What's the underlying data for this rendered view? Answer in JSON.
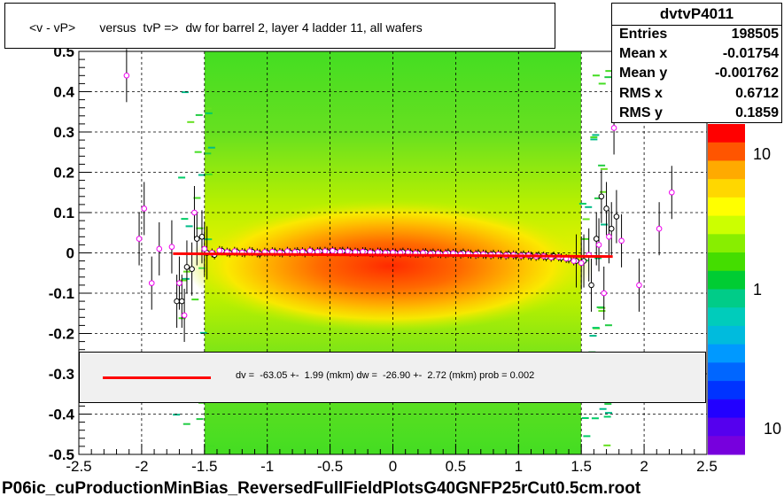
{
  "chart_data": {
    "type": "heatmap",
    "title": "<v - vP>       versus  tvP =>  dw for barrel 2, layer 4 ladder 11, all wafers",
    "xlim": [
      -2.5,
      2.5
    ],
    "ylim": [
      -0.5,
      0.5
    ],
    "x_ticks": [
      "-2.5",
      "-2",
      "-1.5",
      "-1",
      "-0.5",
      "0",
      "0.5",
      "1",
      "1.5",
      "2",
      "2.5"
    ],
    "y_ticks": [
      "-0.5",
      "-0.4",
      "-0.3",
      "-0.2",
      "-0.1",
      "0",
      "0.1",
      "0.2",
      "0.3",
      "0.4",
      "0.5"
    ],
    "grid": true,
    "colorbar": {
      "scale": "log",
      "labels": [
        "10",
        "1",
        "10"
      ],
      "colors": [
        "#ff0000",
        "#ff5500",
        "#ffaa00",
        "#ffd700",
        "#ffff00",
        "#ccff00",
        "#88ee00",
        "#44dd00",
        "#00cc33",
        "#00cc88",
        "#00ccbb",
        "#00bbdd",
        "#0099ff",
        "#0066ff",
        "#0033ff",
        "#2200ff",
        "#5500ee",
        "#7700dd"
      ]
    },
    "fit_line": {
      "x": [
        -1.75,
        1.75
      ],
      "y": [
        -0.002,
        -0.009
      ],
      "color": "#ff0000"
    },
    "profile_black": [
      {
        "x": -1.72,
        "y": -0.12
      },
      {
        "x": -1.68,
        "y": -0.12
      },
      {
        "x": -1.64,
        "y": -0.035
      },
      {
        "x": -1.6,
        "y": -0.04
      },
      {
        "x": -1.56,
        "y": 0.035
      },
      {
        "x": -1.52,
        "y": 0.04
      },
      {
        "x": -1.48,
        "y": 0.0
      },
      {
        "x": -1.42,
        "y": -0.005
      },
      {
        "x": -1.36,
        "y": 0.005
      },
      {
        "x": -1.3,
        "y": 0.0
      },
      {
        "x": -1.24,
        "y": 0.002
      },
      {
        "x": -1.18,
        "y": 0.0
      },
      {
        "x": -1.12,
        "y": 0.003
      },
      {
        "x": -1.06,
        "y": -0.002
      },
      {
        "x": -1.0,
        "y": 0.0
      },
      {
        "x": -0.94,
        "y": 0.002
      },
      {
        "x": -0.88,
        "y": 0.0
      },
      {
        "x": -0.82,
        "y": 0.001
      },
      {
        "x": -0.76,
        "y": 0.003
      },
      {
        "x": -0.7,
        "y": 0.0
      },
      {
        "x": -0.64,
        "y": 0.002
      },
      {
        "x": -0.58,
        "y": 0.004
      },
      {
        "x": -0.52,
        "y": 0.002
      },
      {
        "x": -0.46,
        "y": 0.003
      },
      {
        "x": -0.4,
        "y": 0.004
      },
      {
        "x": -0.34,
        "y": 0.002
      },
      {
        "x": -0.28,
        "y": 0.001
      },
      {
        "x": -0.22,
        "y": 0.003
      },
      {
        "x": -0.16,
        "y": 0.0
      },
      {
        "x": -0.1,
        "y": 0.002
      },
      {
        "x": -0.04,
        "y": 0.001
      },
      {
        "x": 0.02,
        "y": 0.0
      },
      {
        "x": 0.08,
        "y": 0.002
      },
      {
        "x": 0.14,
        "y": 0.0
      },
      {
        "x": 0.2,
        "y": -0.001
      },
      {
        "x": 0.26,
        "y": 0.001
      },
      {
        "x": 0.32,
        "y": 0.0
      },
      {
        "x": 0.38,
        "y": -0.002
      },
      {
        "x": 0.44,
        "y": 0.0
      },
      {
        "x": 0.5,
        "y": -0.002
      },
      {
        "x": 0.56,
        "y": 0.0
      },
      {
        "x": 0.62,
        "y": -0.003
      },
      {
        "x": 0.68,
        "y": -0.002
      },
      {
        "x": 0.74,
        "y": -0.004
      },
      {
        "x": 0.8,
        "y": -0.003
      },
      {
        "x": 0.86,
        "y": -0.005
      },
      {
        "x": 0.92,
        "y": -0.004
      },
      {
        "x": 0.98,
        "y": -0.006
      },
      {
        "x": 1.04,
        "y": -0.005
      },
      {
        "x": 1.1,
        "y": -0.008
      },
      {
        "x": 1.16,
        "y": -0.007
      },
      {
        "x": 1.22,
        "y": -0.01
      },
      {
        "x": 1.28,
        "y": -0.008
      },
      {
        "x": 1.34,
        "y": -0.012
      },
      {
        "x": 1.4,
        "y": -0.015
      },
      {
        "x": 1.46,
        "y": -0.02
      },
      {
        "x": 1.52,
        "y": -0.02
      },
      {
        "x": 1.58,
        "y": -0.08
      },
      {
        "x": 1.62,
        "y": 0.035
      },
      {
        "x": 1.66,
        "y": 0.14
      },
      {
        "x": 1.7,
        "y": 0.11
      },
      {
        "x": 1.74,
        "y": 0.06
      },
      {
        "x": 1.78,
        "y": 0.09
      }
    ],
    "profile_magenta": [
      {
        "x": -2.12,
        "y": 0.44
      },
      {
        "x": -2.02,
        "y": 0.035
      },
      {
        "x": -1.98,
        "y": 0.11
      },
      {
        "x": -1.92,
        "y": -0.075
      },
      {
        "x": -1.86,
        "y": 0.01
      },
      {
        "x": -1.76,
        "y": 0.015
      },
      {
        "x": -1.7,
        "y": -0.075
      },
      {
        "x": -1.66,
        "y": -0.155
      },
      {
        "x": -1.58,
        "y": 0.1
      },
      {
        "x": -1.5,
        "y": 0.01
      },
      {
        "x": -1.44,
        "y": 0.0
      },
      {
        "x": -1.38,
        "y": 0.006
      },
      {
        "x": -1.32,
        "y": 0.002
      },
      {
        "x": -1.26,
        "y": 0.004
      },
      {
        "x": -1.2,
        "y": 0.001
      },
      {
        "x": -1.14,
        "y": 0.004
      },
      {
        "x": -1.08,
        "y": 0.0
      },
      {
        "x": -1.02,
        "y": 0.002
      },
      {
        "x": -0.96,
        "y": 0.003
      },
      {
        "x": -0.9,
        "y": 0.001
      },
      {
        "x": -0.84,
        "y": 0.004
      },
      {
        "x": -0.78,
        "y": 0.002
      },
      {
        "x": -0.72,
        "y": 0.003
      },
      {
        "x": -0.66,
        "y": 0.005
      },
      {
        "x": -0.6,
        "y": 0.003
      },
      {
        "x": -0.54,
        "y": 0.004
      },
      {
        "x": -0.48,
        "y": 0.005
      },
      {
        "x": -0.42,
        "y": 0.003
      },
      {
        "x": -0.36,
        "y": 0.004
      },
      {
        "x": -0.3,
        "y": 0.002
      },
      {
        "x": -0.24,
        "y": 0.003
      },
      {
        "x": -0.18,
        "y": 0.001
      },
      {
        "x": -0.12,
        "y": 0.002
      },
      {
        "x": -0.06,
        "y": 0.0
      },
      {
        "x": 0.0,
        "y": 0.001
      },
      {
        "x": 0.06,
        "y": 0.0
      },
      {
        "x": 0.12,
        "y": 0.001
      },
      {
        "x": 0.18,
        "y": -0.001
      },
      {
        "x": 0.24,
        "y": 0.0
      },
      {
        "x": 0.3,
        "y": -0.002
      },
      {
        "x": 0.36,
        "y": -0.001
      },
      {
        "x": 0.42,
        "y": -0.002
      },
      {
        "x": 0.48,
        "y": -0.001
      },
      {
        "x": 0.54,
        "y": -0.003
      },
      {
        "x": 0.6,
        "y": -0.002
      },
      {
        "x": 0.66,
        "y": -0.004
      },
      {
        "x": 0.72,
        "y": -0.003
      },
      {
        "x": 0.78,
        "y": -0.005
      },
      {
        "x": 0.84,
        "y": -0.004
      },
      {
        "x": 0.9,
        "y": -0.006
      },
      {
        "x": 0.96,
        "y": -0.005
      },
      {
        "x": 1.02,
        "y": -0.007
      },
      {
        "x": 1.08,
        "y": -0.006
      },
      {
        "x": 1.14,
        "y": -0.009
      },
      {
        "x": 1.2,
        "y": -0.008
      },
      {
        "x": 1.26,
        "y": -0.011
      },
      {
        "x": 1.32,
        "y": -0.01
      },
      {
        "x": 1.38,
        "y": -0.014
      },
      {
        "x": 1.44,
        "y": -0.02
      },
      {
        "x": 1.5,
        "y": -0.025
      },
      {
        "x": 1.56,
        "y": -0.005
      },
      {
        "x": 1.64,
        "y": 0.02
      },
      {
        "x": 1.68,
        "y": -0.1
      },
      {
        "x": 1.72,
        "y": 0.04
      },
      {
        "x": 1.76,
        "y": 0.31
      },
      {
        "x": 1.82,
        "y": 0.03
      },
      {
        "x": 1.96,
        "y": -0.08
      },
      {
        "x": 2.12,
        "y": 0.06
      },
      {
        "x": 2.22,
        "y": 0.15
      }
    ]
  },
  "stats": {
    "name": "dvtvP4011",
    "rows": [
      {
        "key": "Entries",
        "value": "198505"
      },
      {
        "key": "Mean x",
        "value": "-0.01754"
      },
      {
        "key": "Mean y",
        "value": "-0.001762"
      },
      {
        "key": "RMS x",
        "value": "0.6712"
      },
      {
        "key": "RMS y",
        "value": "0.1859"
      }
    ]
  },
  "legend": {
    "text": "dv =  -63.05 +-  1.99 (mkm) dw =  -26.90 +-  2.72 (mkm) prob = 0.002",
    "line_color": "#ff0000"
  },
  "footer": "P06ic_cuProductionMinBias_ReversedFullFieldPlotsG40GNFP25rCut0.5cm.root"
}
